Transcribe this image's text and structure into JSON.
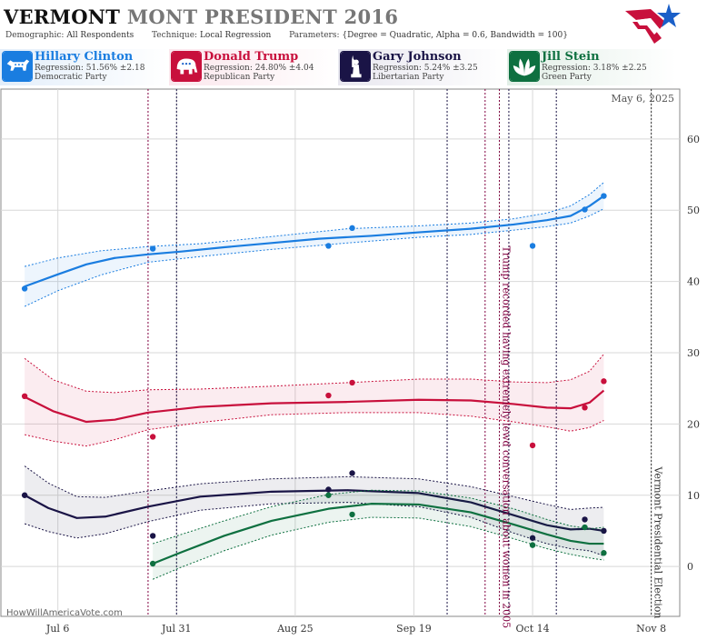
{
  "header": {
    "title_state": "VERMONT",
    "title_rest": "MONT PRESIDENT 2016",
    "demographic_label": "Demographic:",
    "demographic_value": "All Respondents",
    "technique_label": "Technique:",
    "technique_value": "Local Regression",
    "parameters_label": "Parameters:",
    "parameters_value": "{Degree = Quadratic, Alpha = 0.6, Bandwidth = 100}"
  },
  "candidates": [
    {
      "name": "Hillary Clinton",
      "regression": "Regression: 51.56% ±2.18",
      "party": "Democratic Party",
      "color": "#1a7de0",
      "icon": "donkey-icon"
    },
    {
      "name": "Donald Trump",
      "regression": "Regression: 24.80% ±4.04",
      "party": "Republican Party",
      "color": "#c8103c",
      "icon": "elephant-icon"
    },
    {
      "name": "Gary Johnson",
      "regression": "Regression: 5.24% ±3.25",
      "party": "Libertarian Party",
      "color": "#1a1446",
      "icon": "liberty-statue-icon"
    },
    {
      "name": "Jill Stein",
      "regression": "Regression: 3.18% ±2.25",
      "party": "Green Party",
      "color": "#0e7040",
      "icon": "leaf-icon"
    }
  ],
  "watermark": "HowWillAmericaVote.com",
  "chart_data": {
    "type": "line",
    "date_label": "May 6, 2025",
    "x_axis": {
      "range": [
        "2016-06-24",
        "2016-11-14"
      ],
      "ticks": [
        "Jul 6",
        "Jul 31",
        "Aug 25",
        "Sep 19",
        "Oct 14",
        "Nov 8"
      ],
      "tick_dates": [
        "2016-07-06",
        "2016-07-31",
        "2016-08-25",
        "2016-09-19",
        "2016-10-14",
        "2016-11-08"
      ]
    },
    "y_axis": {
      "range": [
        -7,
        67
      ],
      "ticks": [
        0,
        10,
        20,
        30,
        40,
        50,
        60
      ],
      "position": "right"
    },
    "grid": true,
    "event_lines": [
      {
        "date": "2016-07-25",
        "color": "#800040"
      },
      {
        "date": "2016-07-31",
        "color": "#1a1446"
      },
      {
        "date": "2016-09-26",
        "color": "#1a1446"
      },
      {
        "date": "2016-10-04",
        "color": "#800040"
      },
      {
        "date": "2016-10-07",
        "color": "#800040"
      },
      {
        "date": "2016-10-09",
        "color": "#1a1446"
      },
      {
        "date": "2016-10-19",
        "color": "#1a1446"
      },
      {
        "date": "2016-11-08",
        "color": "#333333"
      }
    ],
    "annotations": [
      {
        "text": "Trump recorded having extremely lewd conversation about women in 2005",
        "date": "2016-10-07",
        "color": "#800040"
      },
      {
        "text": "Vermont Presidential Election",
        "date": "2016-11-08",
        "color": "#333333"
      }
    ],
    "series": [
      {
        "name": "Hillary Clinton",
        "color": "#1a7de0",
        "line": [
          [
            "2016-06-29",
            39.3
          ],
          [
            "2016-07-06",
            41
          ],
          [
            "2016-07-12",
            42.4
          ],
          [
            "2016-07-18",
            43.3
          ],
          [
            "2016-07-25",
            43.8
          ],
          [
            "2016-08-01",
            44.2
          ],
          [
            "2016-08-10",
            44.8
          ],
          [
            "2016-08-20",
            45.4
          ],
          [
            "2016-08-30",
            46
          ],
          [
            "2016-09-10",
            46.4
          ],
          [
            "2016-09-20",
            46.9
          ],
          [
            "2016-10-01",
            47.4
          ],
          [
            "2016-10-10",
            48
          ],
          [
            "2016-10-17",
            48.6
          ],
          [
            "2016-10-22",
            49.2
          ],
          [
            "2016-10-26",
            50.6
          ],
          [
            "2016-10-29",
            52
          ]
        ],
        "band": [
          [
            "2016-06-29",
            36.5,
            42.1
          ],
          [
            "2016-07-06",
            38.7,
            43.3
          ],
          [
            "2016-07-15",
            40.9,
            44.3
          ],
          [
            "2016-07-25",
            42.7,
            44.9
          ],
          [
            "2016-08-05",
            43.5,
            45.3
          ],
          [
            "2016-08-20",
            44.5,
            46.3
          ],
          [
            "2016-09-05",
            45.4,
            47.4
          ],
          [
            "2016-09-20",
            46.2,
            47.8
          ],
          [
            "2016-10-01",
            46.6,
            48.2
          ],
          [
            "2016-10-10",
            47.2,
            48.8
          ],
          [
            "2016-10-17",
            47.7,
            49.6
          ],
          [
            "2016-10-22",
            48.2,
            50.6
          ],
          [
            "2016-10-26",
            49.2,
            52.2
          ],
          [
            "2016-10-29",
            50.2,
            53.9
          ]
        ],
        "points": [
          [
            "2016-06-29",
            39
          ],
          [
            "2016-07-26",
            44.6
          ],
          [
            "2016-09-01",
            45
          ],
          [
            "2016-09-06",
            47.5
          ],
          [
            "2016-10-14",
            45
          ],
          [
            "2016-10-25",
            50.1
          ],
          [
            "2016-10-29",
            52
          ]
        ]
      },
      {
        "name": "Donald Trump",
        "color": "#c8103c",
        "line": [
          [
            "2016-06-29",
            23.8
          ],
          [
            "2016-07-05",
            21.8
          ],
          [
            "2016-07-12",
            20.3
          ],
          [
            "2016-07-18",
            20.6
          ],
          [
            "2016-07-25",
            21.6
          ],
          [
            "2016-08-05",
            22.4
          ],
          [
            "2016-08-20",
            22.9
          ],
          [
            "2016-09-05",
            23.1
          ],
          [
            "2016-09-20",
            23.4
          ],
          [
            "2016-10-01",
            23.3
          ],
          [
            "2016-10-10",
            22.8
          ],
          [
            "2016-10-17",
            22.3
          ],
          [
            "2016-10-22",
            22.2
          ],
          [
            "2016-10-26",
            23
          ],
          [
            "2016-10-29",
            24.7
          ]
        ],
        "band": [
          [
            "2016-06-29",
            18.5,
            29.2
          ],
          [
            "2016-07-05",
            17.6,
            26.2
          ],
          [
            "2016-07-12",
            16.9,
            24.6
          ],
          [
            "2016-07-18",
            17.8,
            24.4
          ],
          [
            "2016-07-25",
            19.2,
            24.8
          ],
          [
            "2016-08-05",
            20.2,
            24.9
          ],
          [
            "2016-08-20",
            21.3,
            25.3
          ],
          [
            "2016-09-05",
            21.6,
            25.8
          ],
          [
            "2016-09-20",
            21.6,
            26.3
          ],
          [
            "2016-10-01",
            21.1,
            26.3
          ],
          [
            "2016-10-10",
            20.3,
            25.9
          ],
          [
            "2016-10-17",
            19.6,
            25.8
          ],
          [
            "2016-10-22",
            19,
            26.2
          ],
          [
            "2016-10-26",
            19.5,
            27.4
          ],
          [
            "2016-10-29",
            20.5,
            29.8
          ]
        ],
        "points": [
          [
            "2016-06-29",
            23.9
          ],
          [
            "2016-07-26",
            18.2
          ],
          [
            "2016-09-01",
            24
          ],
          [
            "2016-09-06",
            25.8
          ],
          [
            "2016-10-14",
            17
          ],
          [
            "2016-10-25",
            22.3
          ],
          [
            "2016-10-29",
            26
          ]
        ]
      },
      {
        "name": "Gary Johnson",
        "color": "#1a1446",
        "line": [
          [
            "2016-06-29",
            10
          ],
          [
            "2016-07-04",
            8.2
          ],
          [
            "2016-07-10",
            6.8
          ],
          [
            "2016-07-16",
            7
          ],
          [
            "2016-07-25",
            8.4
          ],
          [
            "2016-08-05",
            9.8
          ],
          [
            "2016-08-20",
            10.5
          ],
          [
            "2016-09-05",
            10.7
          ],
          [
            "2016-09-20",
            10.3
          ],
          [
            "2016-10-01",
            9
          ],
          [
            "2016-10-10",
            7.2
          ],
          [
            "2016-10-17",
            5.8
          ],
          [
            "2016-10-22",
            5.2
          ],
          [
            "2016-10-26",
            5.3
          ],
          [
            "2016-10-29",
            5
          ]
        ],
        "band": [
          [
            "2016-06-29",
            6,
            14.1
          ],
          [
            "2016-07-04",
            4.9,
            11.7
          ],
          [
            "2016-07-10",
            4,
            9.8
          ],
          [
            "2016-07-16",
            4.6,
            9.7
          ],
          [
            "2016-07-25",
            6.3,
            10.6
          ],
          [
            "2016-08-05",
            7.9,
            11.6
          ],
          [
            "2016-08-20",
            8.8,
            12.3
          ],
          [
            "2016-09-05",
            9,
            12.6
          ],
          [
            "2016-09-20",
            8.4,
            12.3
          ],
          [
            "2016-10-01",
            6.9,
            11.2
          ],
          [
            "2016-10-10",
            4.7,
            9.8
          ],
          [
            "2016-10-17",
            3.2,
            8.7
          ],
          [
            "2016-10-22",
            2.5,
            8
          ],
          [
            "2016-10-26",
            2.2,
            8.2
          ],
          [
            "2016-10-29",
            1.5,
            8.3
          ]
        ],
        "points": [
          [
            "2016-06-29",
            10
          ],
          [
            "2016-07-26",
            4.3
          ],
          [
            "2016-09-01",
            10.8
          ],
          [
            "2016-09-06",
            13.1
          ],
          [
            "2016-10-14",
            4
          ],
          [
            "2016-10-25",
            6.6
          ],
          [
            "2016-10-29",
            5
          ]
        ]
      },
      {
        "name": "Jill Stein",
        "color": "#0e7040",
        "line": [
          [
            "2016-07-26",
            0.4
          ],
          [
            "2016-08-01",
            2
          ],
          [
            "2016-08-10",
            4.3
          ],
          [
            "2016-08-20",
            6.4
          ],
          [
            "2016-09-01",
            8.1
          ],
          [
            "2016-09-10",
            8.8
          ],
          [
            "2016-09-20",
            8.7
          ],
          [
            "2016-10-01",
            7.6
          ],
          [
            "2016-10-10",
            5.9
          ],
          [
            "2016-10-17",
            4.5
          ],
          [
            "2016-10-22",
            3.6
          ],
          [
            "2016-10-26",
            3.2
          ],
          [
            "2016-10-29",
            3.2
          ]
        ],
        "band": [
          [
            "2016-07-26",
            -1.8,
            3.2
          ],
          [
            "2016-08-01",
            -0.1,
            4.5
          ],
          [
            "2016-08-10",
            2.2,
            6.4
          ],
          [
            "2016-08-20",
            4.4,
            8.4
          ],
          [
            "2016-09-01",
            6.2,
            10.1
          ],
          [
            "2016-09-10",
            6.9,
            10.7
          ],
          [
            "2016-09-20",
            6.8,
            10.6
          ],
          [
            "2016-10-01",
            5.6,
            9.6
          ],
          [
            "2016-10-10",
            3.9,
            8.1
          ],
          [
            "2016-10-17",
            2.5,
            6.6
          ],
          [
            "2016-10-22",
            1.7,
            5.7
          ],
          [
            "2016-10-26",
            1.2,
            5.3
          ],
          [
            "2016-10-29",
            0.9,
            5.5
          ]
        ],
        "points": [
          [
            "2016-07-26",
            0.4
          ],
          [
            "2016-09-01",
            10
          ],
          [
            "2016-09-06",
            7.3
          ],
          [
            "2016-10-14",
            3
          ],
          [
            "2016-10-25",
            5.5
          ],
          [
            "2016-10-29",
            1.9
          ]
        ]
      }
    ]
  }
}
